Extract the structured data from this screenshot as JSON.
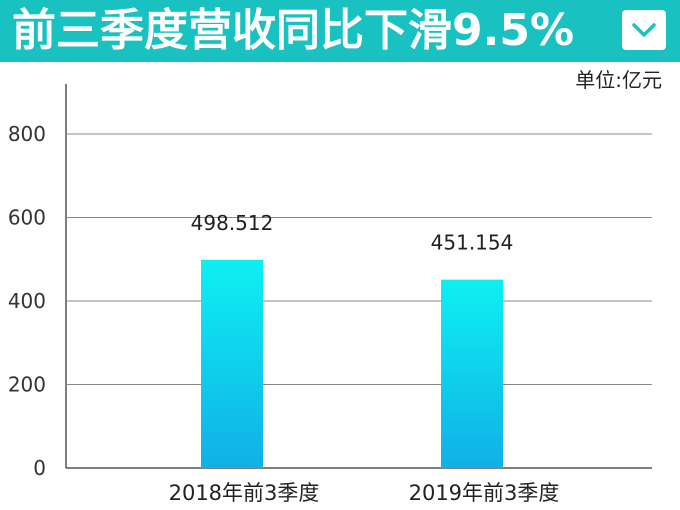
{
  "header": {
    "title": "前三季度营收同比下滑9.5%",
    "chevron_icon": "chevron-down-icon",
    "background_color": "#19c2c0"
  },
  "unit_label": "单位:亿元",
  "chart_data": {
    "type": "bar",
    "categories": [
      "2018年前3季度",
      "2019年前3季度"
    ],
    "values": [
      498.512,
      451.154
    ],
    "data_labels": [
      "498.512",
      "451.154"
    ],
    "ylim": [
      0,
      900
    ],
    "yticks": [
      0,
      200,
      400,
      600,
      800
    ],
    "ytick_labels": [
      "0",
      "200",
      "400",
      "600",
      "800"
    ],
    "grid": true,
    "bar_gradient": [
      "#0ef0f2",
      "#10b0e6"
    ]
  }
}
